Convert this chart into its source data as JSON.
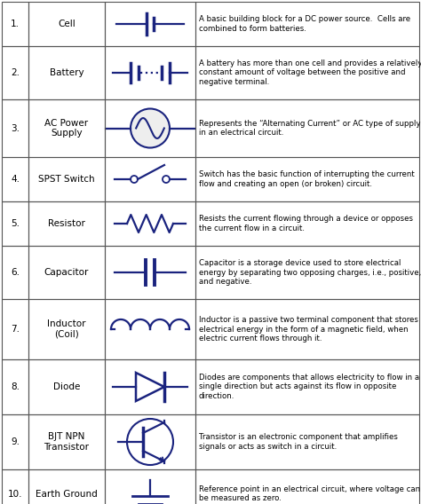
{
  "bg_color": "#ffffff",
  "border_color": "#555555",
  "symbol_color": "#1a237e",
  "text_color": "#000000",
  "rows": [
    {
      "num": "1.",
      "name": "Cell",
      "description": "A basic building block for a DC power source.  Cells are\ncombined to form batteries."
    },
    {
      "num": "2.",
      "name": "Battery",
      "description": "A battery has more than one cell and provides a relatively\nconstant amount of voltage between the positive and\nnegative terminal."
    },
    {
      "num": "3.",
      "name": "AC Power\nSupply",
      "description": "Represents the “Alternating Current” or AC type of supply\nin an electrical circuit."
    },
    {
      "num": "4.",
      "name": "SPST Switch",
      "description": "Switch has the basic function of interrupting the current\nflow and creating an open (or broken) circuit."
    },
    {
      "num": "5.",
      "name": "Resistor",
      "description": "Resists the current flowing through a device or opposes\nthe current flow in a circuit."
    },
    {
      "num": "6.",
      "name": "Capacitor",
      "description": "Capacitor is a storage device used to store electrical\nenergy by separating two opposing charges, i.e., positive,\nand negative."
    },
    {
      "num": "7.",
      "name": "Inductor\n(Coil)",
      "description": "Inductor is a passive two terminal component that stores\nelectrical energy in the form of a magnetic field, when\nelectric current flows through it."
    },
    {
      "num": "8.",
      "name": "Diode",
      "description": "Diodes are components that allows electricity to flow in a\nsingle direction but acts against its flow in opposite\ndirection."
    },
    {
      "num": "9.",
      "name": "BJT NPN\nTransistor",
      "description": "Transistor is an electronic component that amplifies\nsignals or acts as switch in a circuit."
    },
    {
      "num": "10.",
      "name": "Earth Ground",
      "description": "Reference point in an electrical circuit, where voltage can\nbe measured as zero."
    }
  ]
}
